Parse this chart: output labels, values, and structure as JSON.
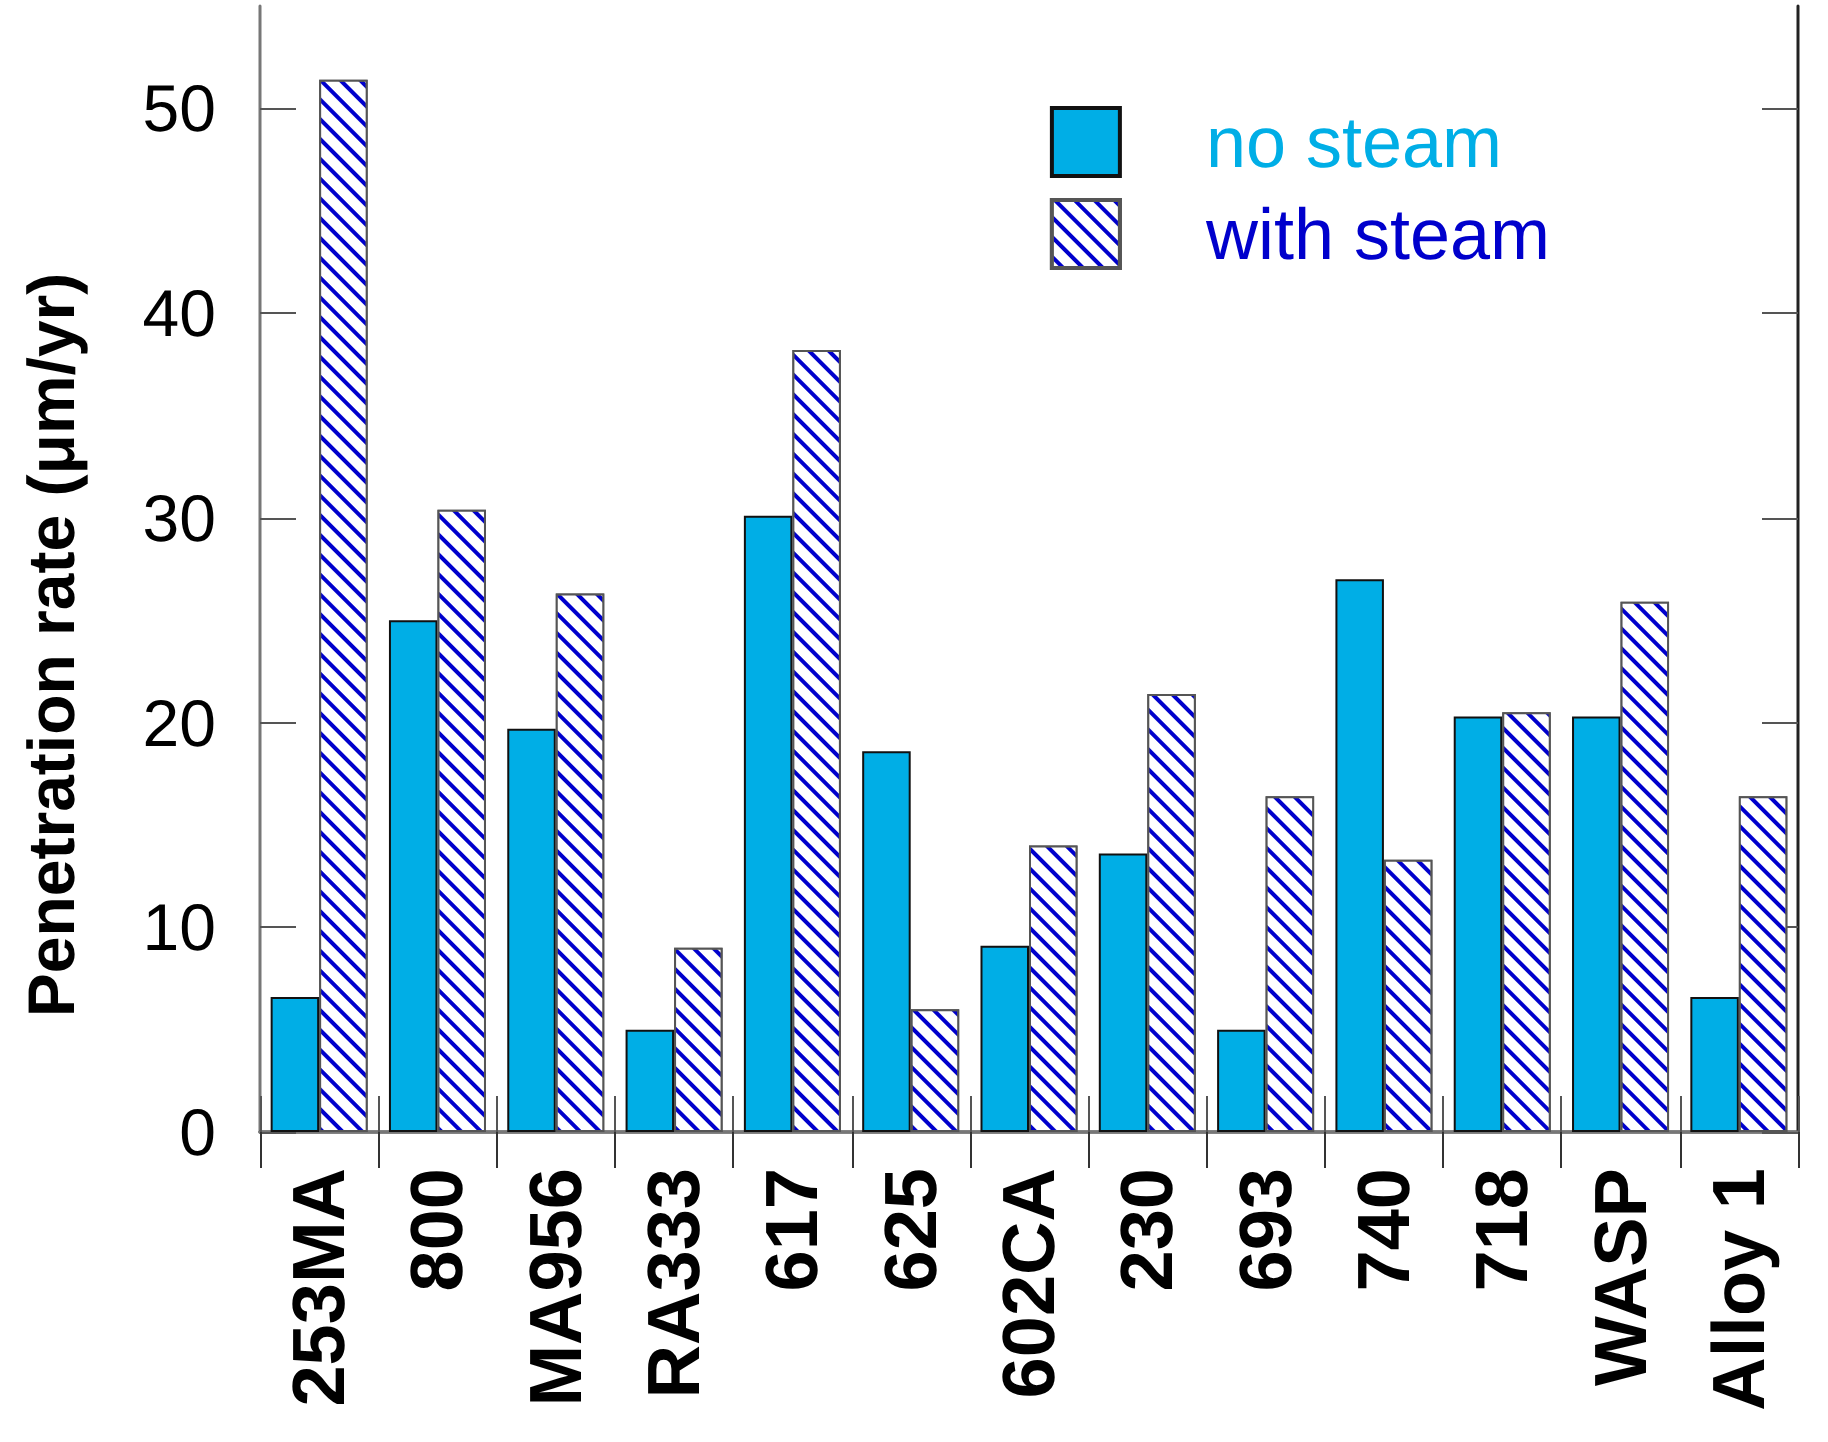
{
  "chart_data": {
    "type": "bar",
    "ylabel": "Penetration rate (μm/yr)",
    "categories": [
      "253MA",
      "800",
      "MA956",
      "RA333",
      "617",
      "625",
      "602CA",
      "230",
      "693",
      "740",
      "718",
      "WASP",
      "Alloy 1"
    ],
    "series": [
      {
        "name": "no steam",
        "color": "#00aee6",
        "values": [
          6.6,
          25.0,
          19.7,
          5.0,
          30.1,
          18.6,
          9.1,
          13.6,
          5.0,
          27.0,
          20.3,
          20.3,
          6.6
        ]
      },
      {
        "name": "with steam",
        "color": "#0000cc",
        "values": [
          51.4,
          30.4,
          26.3,
          9.0,
          38.2,
          6.0,
          14.0,
          21.4,
          16.4,
          13.3,
          20.5,
          25.9,
          16.4
        ]
      }
    ],
    "ylim": [
      0,
      55
    ],
    "yticks": [
      0,
      10,
      20,
      30,
      40,
      50
    ],
    "grid": false,
    "legend": "top right"
  }
}
